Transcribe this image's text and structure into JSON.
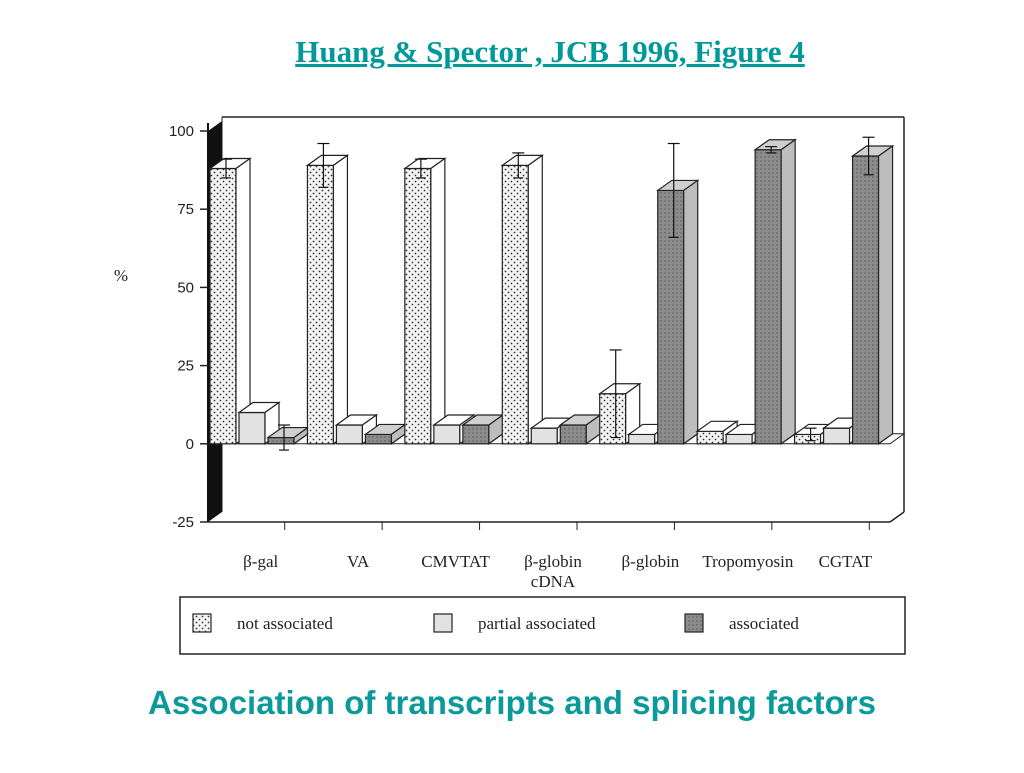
{
  "header": {
    "citation": "Huang & Spector , JCB 1996, Figure 4"
  },
  "caption": "Association of transcripts and splicing factors",
  "colors": {
    "accent": "#009999",
    "not_associated_fill": "#f4f4f4",
    "partial_fill": "#e2e2e2",
    "associated_fill": "#8c8c8c"
  },
  "chart_data": {
    "type": "bar",
    "ylabel": "%",
    "ylim": [
      -25,
      100
    ],
    "yticks": [
      100,
      75,
      50,
      25,
      0,
      -25
    ],
    "categories": [
      "β-gal",
      "VA",
      "CMVTAT",
      "β-globin cDNA",
      "β-globin",
      "Tropomyosin",
      "CGTAT"
    ],
    "category_labels": [
      [
        "β-gal"
      ],
      [
        "VA"
      ],
      [
        "CMVTAT"
      ],
      [
        "β-globin",
        "cDNA"
      ],
      [
        "β-globin"
      ],
      [
        "Tropomyosin"
      ],
      [
        "CGTAT"
      ]
    ],
    "series": [
      {
        "name": "not associated",
        "values": [
          88,
          89,
          88,
          89,
          16,
          4,
          3
        ],
        "errors": [
          3,
          7,
          3,
          4,
          14,
          0,
          2
        ]
      },
      {
        "name": "partial associated",
        "values": [
          10,
          6,
          6,
          5,
          3,
          3,
          5
        ],
        "errors": [
          0,
          0,
          0,
          0,
          0,
          0,
          0
        ]
      },
      {
        "name": "associated",
        "values": [
          2,
          3,
          6,
          6,
          81,
          94,
          92
        ],
        "errors": [
          4,
          0,
          0,
          0,
          15,
          1,
          6
        ]
      }
    ],
    "legend": {
      "position": "bottom",
      "items": [
        "not associated",
        "partial associated",
        "associated"
      ]
    },
    "grid": false
  }
}
